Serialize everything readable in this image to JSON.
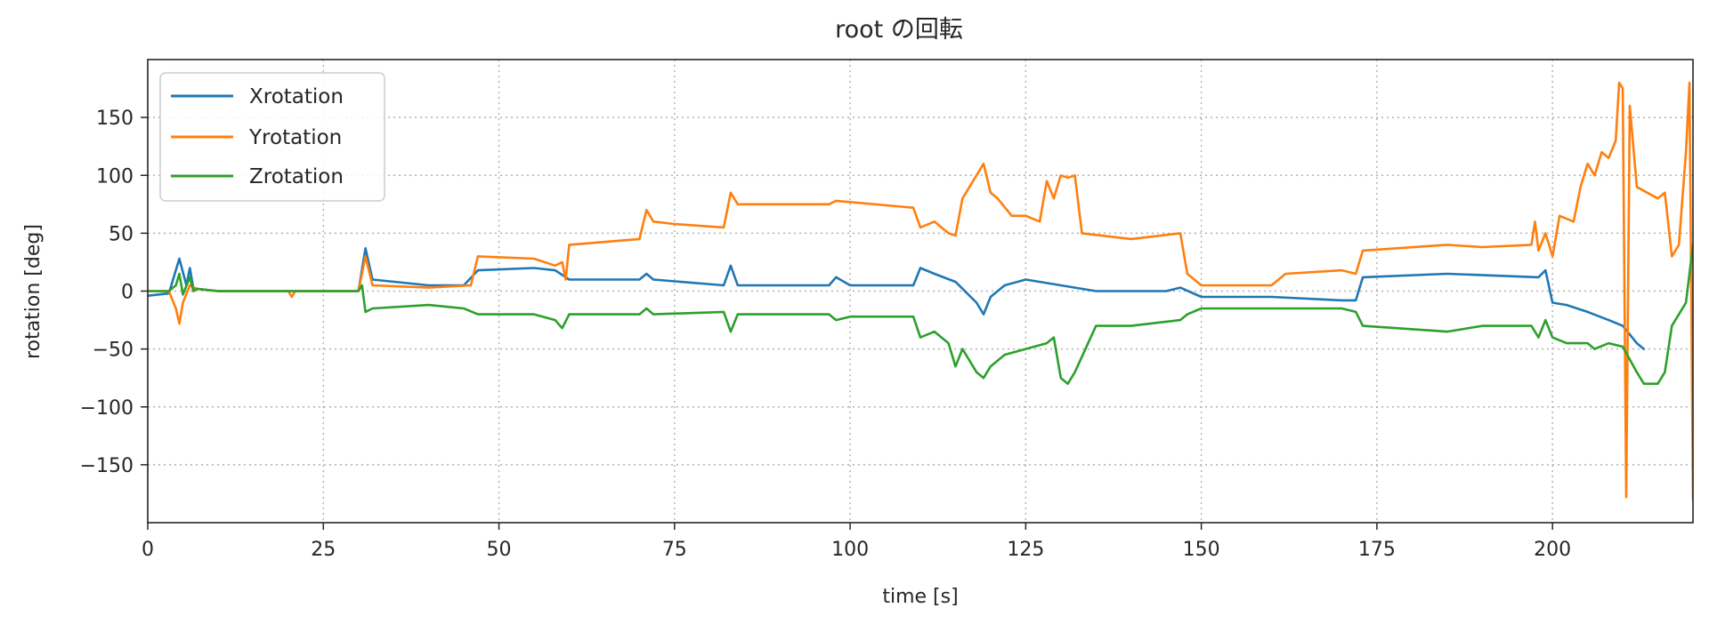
{
  "chart_data": {
    "type": "line",
    "title": "root の回転",
    "xlabel": "time [s]",
    "ylabel": "rotation [deg]",
    "xlim": [
      0,
      220
    ],
    "ylim": [
      -200,
      200
    ],
    "xticks": [
      0,
      25,
      50,
      75,
      100,
      125,
      150,
      175,
      200
    ],
    "yticks": [
      -150,
      -100,
      -50,
      0,
      50,
      100,
      150
    ],
    "xtick_labels": [
      "0",
      "25",
      "50",
      "75",
      "100",
      "125",
      "150",
      "175",
      "200"
    ],
    "ytick_labels": [
      "−150",
      "−100",
      "−50",
      "0",
      "50",
      "100",
      "150"
    ],
    "grid": true,
    "legend_position": "upper-left",
    "series": [
      {
        "name": "Xrotation",
        "color": "#1f77b4",
        "x": [
          0,
          3,
          4.5,
          5.5,
          6,
          6.5,
          7,
          10,
          20,
          30,
          31,
          32,
          40,
          45,
          47,
          55,
          58,
          60,
          70,
          71,
          72,
          82,
          83,
          84,
          97,
          98,
          100,
          109,
          110,
          112,
          115,
          118,
          119,
          120,
          122,
          125,
          130,
          135,
          145,
          147,
          150,
          160,
          170,
          172,
          173,
          185,
          198,
          199,
          200,
          202,
          205,
          208,
          210,
          212,
          213
        ],
        "y": [
          -4,
          -2,
          28,
          5,
          20,
          2,
          2,
          0,
          0,
          0,
          37,
          10,
          5,
          5,
          18,
          20,
          18,
          10,
          10,
          15,
          10,
          5,
          22,
          5,
          5,
          12,
          5,
          5,
          20,
          15,
          8,
          -10,
          -20,
          -5,
          5,
          10,
          5,
          0,
          0,
          3,
          -5,
          -5,
          -8,
          -8,
          12,
          15,
          12,
          18,
          -10,
          -12,
          -18,
          -25,
          -30,
          -45,
          -50
        ]
      },
      {
        "name": "Yrotation",
        "color": "#ff7f0e",
        "x": [
          0,
          3,
          4,
          4.5,
          5,
          6,
          7,
          10,
          20,
          20.5,
          21,
          30,
          31,
          32,
          40,
          46,
          47,
          55,
          58,
          59,
          59.5,
          60,
          70,
          71,
          72,
          75,
          82,
          83,
          84,
          97,
          98,
          109,
          110,
          112,
          114,
          115,
          116,
          118,
          119,
          120,
          121,
          123,
          125,
          127,
          128,
          129,
          130,
          131,
          132,
          133,
          140,
          147,
          148,
          150,
          160,
          162,
          170,
          172,
          173,
          185,
          190,
          197,
          197.5,
          198,
          199,
          200,
          201,
          203,
          204,
          205,
          206,
          207,
          208,
          209,
          209.5,
          210,
          210.5,
          211,
          212,
          215,
          216,
          217,
          218,
          219,
          219.5,
          220
        ],
        "y": [
          0,
          0,
          -15,
          -28,
          -10,
          5,
          2,
          0,
          0,
          -5,
          0,
          0,
          30,
          5,
          3,
          5,
          30,
          28,
          22,
          25,
          10,
          40,
          45,
          70,
          60,
          58,
          55,
          85,
          75,
          75,
          78,
          72,
          55,
          60,
          50,
          48,
          80,
          100,
          110,
          85,
          80,
          65,
          65,
          60,
          95,
          80,
          100,
          98,
          100,
          50,
          45,
          50,
          15,
          5,
          5,
          15,
          18,
          15,
          35,
          40,
          38,
          40,
          60,
          35,
          50,
          30,
          65,
          60,
          90,
          110,
          100,
          120,
          115,
          130,
          180,
          175,
          -178,
          160,
          90,
          80,
          85,
          30,
          40,
          120,
          180,
          -180
        ]
      },
      {
        "name": "Zrotation",
        "color": "#2ca02c",
        "x": [
          0,
          3,
          4,
          4.5,
          5,
          6,
          6.5,
          7,
          10,
          20,
          30,
          30.5,
          31,
          32,
          40,
          45,
          47,
          55,
          58,
          59,
          60,
          70,
          71,
          72,
          82,
          83,
          84,
          97,
          98,
          100,
          109,
          110,
          112,
          114,
          115,
          116,
          118,
          119,
          120,
          122,
          125,
          128,
          129,
          130,
          131,
          132,
          135,
          140,
          147,
          148,
          150,
          160,
          170,
          172,
          173,
          185,
          190,
          197,
          198,
          199,
          200,
          202,
          205,
          206,
          208,
          210,
          212,
          213,
          215,
          216,
          217,
          218,
          219,
          220
        ],
        "y": [
          0,
          0,
          5,
          15,
          -3,
          12,
          0,
          2,
          0,
          0,
          0,
          5,
          -18,
          -15,
          -12,
          -15,
          -20,
          -20,
          -25,
          -32,
          -20,
          -20,
          -15,
          -20,
          -18,
          -35,
          -20,
          -20,
          -25,
          -22,
          -22,
          -40,
          -35,
          -45,
          -65,
          -50,
          -70,
          -75,
          -65,
          -55,
          -50,
          -45,
          -40,
          -75,
          -80,
          -70,
          -30,
          -30,
          -25,
          -20,
          -15,
          -15,
          -15,
          -18,
          -30,
          -35,
          -30,
          -30,
          -40,
          -25,
          -40,
          -45,
          -45,
          -50,
          -45,
          -48,
          -70,
          -80,
          -80,
          -70,
          -30,
          -20,
          -10,
          40
        ]
      }
    ]
  }
}
